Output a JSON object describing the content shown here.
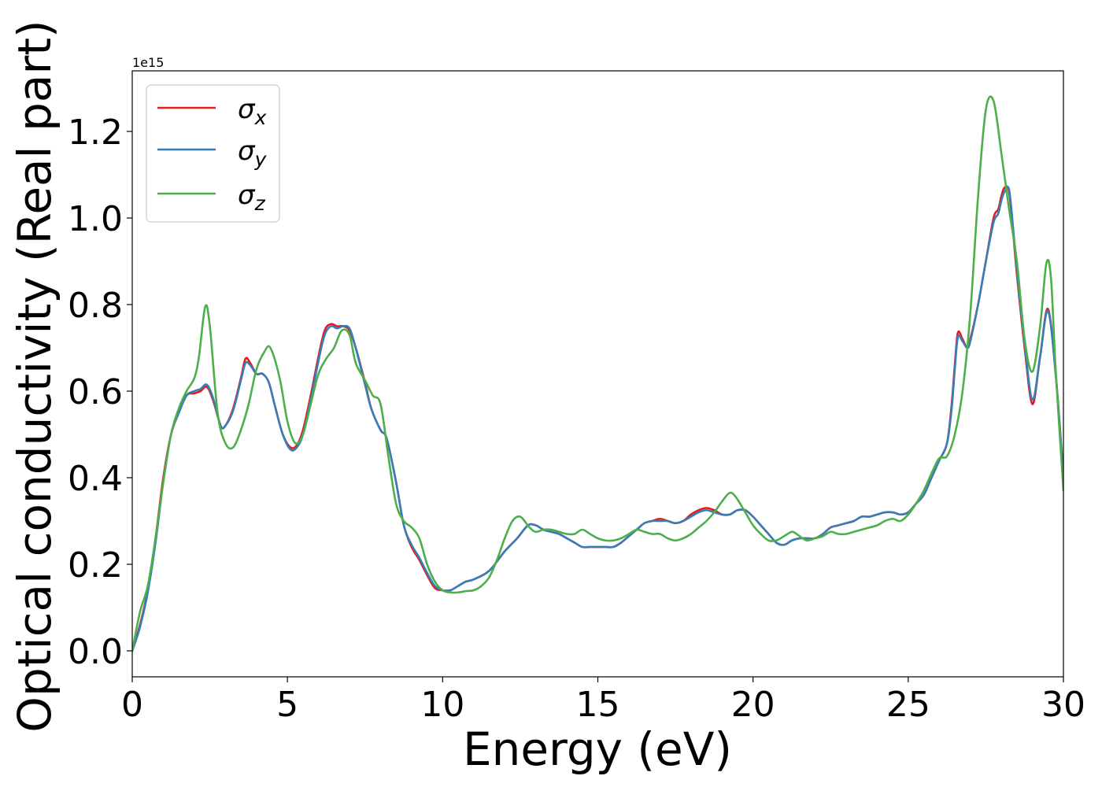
{
  "chart_data": {
    "type": "line",
    "xlabel": "Energy (eV)",
    "ylabel": "Optical conductivity (Real part)",
    "offset_text": "1e15",
    "xlim": [
      0,
      30
    ],
    "ylim": [
      -0.06,
      1.34
    ],
    "xticks": [
      0,
      5,
      10,
      15,
      20,
      25,
      30
    ],
    "xtick_labels": [
      "0",
      "5",
      "10",
      "15",
      "20",
      "25",
      "30"
    ],
    "yticks": [
      0.0,
      0.2,
      0.4,
      0.6,
      0.8,
      1.0,
      1.2
    ],
    "ytick_labels": [
      "0.0",
      "0.2",
      "0.4",
      "0.6",
      "0.8",
      "1.0",
      "1.2"
    ],
    "grid": false,
    "legend_position": "top-left",
    "series": [
      {
        "name": "σx",
        "legend_symbol": "σ",
        "legend_sub": "x",
        "color": "#e41a1c",
        "x": [
          0,
          0.25,
          0.5,
          0.75,
          1.0,
          1.25,
          1.5,
          1.75,
          2.0,
          2.2,
          2.4,
          2.6,
          2.85,
          3.0,
          3.25,
          3.5,
          3.65,
          3.8,
          4.0,
          4.2,
          4.4,
          4.6,
          4.85,
          5.1,
          5.3,
          5.5,
          5.75,
          6.0,
          6.2,
          6.4,
          6.6,
          6.8,
          7.0,
          7.2,
          7.5,
          7.7,
          8.0,
          8.2,
          8.5,
          8.75,
          9.0,
          9.25,
          9.5,
          9.75,
          10.0,
          10.25,
          10.5,
          10.75,
          11.0,
          11.5,
          12.0,
          12.4,
          12.75,
          13.0,
          13.25,
          13.5,
          13.75,
          14.0,
          14.25,
          14.5,
          14.75,
          15.0,
          15.25,
          15.5,
          15.75,
          16.0,
          16.25,
          16.5,
          16.75,
          17.0,
          17.25,
          17.5,
          17.75,
          18.0,
          18.25,
          18.5,
          18.75,
          19.0,
          19.25,
          19.5,
          19.75,
          20.0,
          20.25,
          20.5,
          20.75,
          21.0,
          21.25,
          21.5,
          21.75,
          22.0,
          22.25,
          22.5,
          22.75,
          23.0,
          23.25,
          23.5,
          23.75,
          24.0,
          24.25,
          24.5,
          24.75,
          25.0,
          25.25,
          25.5,
          25.75,
          26.0,
          26.25,
          26.4,
          26.5,
          26.6,
          26.75,
          26.9,
          27.0,
          27.25,
          27.5,
          27.75,
          27.9,
          28.0,
          28.1,
          28.25,
          28.4,
          28.5,
          28.75,
          29.0,
          29.25,
          29.5,
          29.75,
          30.0
        ],
        "y": [
          0.0,
          0.06,
          0.14,
          0.26,
          0.4,
          0.5,
          0.55,
          0.59,
          0.595,
          0.6,
          0.61,
          0.58,
          0.52,
          0.52,
          0.56,
          0.63,
          0.675,
          0.665,
          0.64,
          0.64,
          0.62,
          0.565,
          0.5,
          0.47,
          0.475,
          0.51,
          0.59,
          0.68,
          0.74,
          0.755,
          0.75,
          0.75,
          0.74,
          0.7,
          0.62,
          0.56,
          0.51,
          0.49,
          0.39,
          0.29,
          0.24,
          0.21,
          0.175,
          0.145,
          0.14,
          0.14,
          0.15,
          0.16,
          0.165,
          0.185,
          0.23,
          0.26,
          0.29,
          0.29,
          0.28,
          0.275,
          0.27,
          0.26,
          0.25,
          0.24,
          0.24,
          0.24,
          0.24,
          0.24,
          0.25,
          0.265,
          0.28,
          0.295,
          0.3,
          0.305,
          0.3,
          0.295,
          0.3,
          0.315,
          0.325,
          0.33,
          0.325,
          0.315,
          0.315,
          0.325,
          0.325,
          0.31,
          0.29,
          0.27,
          0.25,
          0.245,
          0.255,
          0.26,
          0.26,
          0.26,
          0.27,
          0.285,
          0.29,
          0.295,
          0.3,
          0.31,
          0.31,
          0.315,
          0.32,
          0.32,
          0.315,
          0.32,
          0.34,
          0.36,
          0.4,
          0.44,
          0.48,
          0.57,
          0.66,
          0.735,
          0.72,
          0.7,
          0.72,
          0.8,
          0.9,
          1.0,
          1.02,
          1.05,
          1.07,
          1.06,
          0.95,
          0.87,
          0.7,
          0.57,
          0.68,
          0.79,
          0.64,
          0.4
        ]
      },
      {
        "name": "σy",
        "legend_symbol": "σ",
        "legend_sub": "y",
        "color": "#377eb8",
        "x": [
          0,
          0.25,
          0.5,
          0.75,
          1.0,
          1.25,
          1.5,
          1.75,
          2.0,
          2.2,
          2.4,
          2.6,
          2.85,
          3.0,
          3.25,
          3.5,
          3.65,
          3.8,
          4.0,
          4.2,
          4.4,
          4.6,
          4.85,
          5.1,
          5.3,
          5.5,
          5.75,
          6.0,
          6.2,
          6.4,
          6.6,
          6.8,
          7.0,
          7.2,
          7.5,
          7.7,
          8.0,
          8.2,
          8.5,
          8.75,
          9.0,
          9.25,
          9.5,
          9.75,
          10.0,
          10.25,
          10.5,
          10.75,
          11.0,
          11.5,
          12.0,
          12.4,
          12.75,
          13.0,
          13.25,
          13.5,
          13.75,
          14.0,
          14.25,
          14.5,
          14.75,
          15.0,
          15.25,
          15.5,
          15.75,
          16.0,
          16.25,
          16.5,
          16.75,
          17.0,
          17.25,
          17.5,
          17.75,
          18.0,
          18.25,
          18.5,
          18.75,
          19.0,
          19.25,
          19.5,
          19.75,
          20.0,
          20.25,
          20.5,
          20.75,
          21.0,
          21.25,
          21.5,
          21.75,
          22.0,
          22.25,
          22.5,
          22.75,
          23.0,
          23.25,
          23.5,
          23.75,
          24.0,
          24.25,
          24.5,
          24.75,
          25.0,
          25.25,
          25.5,
          25.75,
          26.0,
          26.25,
          26.4,
          26.5,
          26.6,
          26.75,
          26.9,
          27.0,
          27.25,
          27.5,
          27.75,
          27.9,
          28.0,
          28.1,
          28.25,
          28.4,
          28.5,
          28.75,
          29.0,
          29.25,
          29.5,
          29.75,
          30.0
        ],
        "y": [
          0.0,
          0.055,
          0.135,
          0.25,
          0.39,
          0.5,
          0.55,
          0.59,
          0.6,
          0.605,
          0.615,
          0.585,
          0.52,
          0.52,
          0.555,
          0.625,
          0.665,
          0.66,
          0.64,
          0.64,
          0.62,
          0.565,
          0.5,
          0.465,
          0.47,
          0.5,
          0.58,
          0.67,
          0.73,
          0.75,
          0.745,
          0.75,
          0.745,
          0.7,
          0.615,
          0.56,
          0.51,
          0.49,
          0.39,
          0.29,
          0.245,
          0.215,
          0.18,
          0.15,
          0.14,
          0.14,
          0.15,
          0.16,
          0.165,
          0.185,
          0.23,
          0.26,
          0.29,
          0.29,
          0.28,
          0.275,
          0.27,
          0.26,
          0.25,
          0.24,
          0.24,
          0.24,
          0.24,
          0.24,
          0.25,
          0.265,
          0.28,
          0.295,
          0.3,
          0.3,
          0.3,
          0.295,
          0.3,
          0.31,
          0.32,
          0.325,
          0.32,
          0.315,
          0.315,
          0.325,
          0.325,
          0.31,
          0.29,
          0.27,
          0.25,
          0.245,
          0.255,
          0.26,
          0.26,
          0.26,
          0.27,
          0.285,
          0.29,
          0.295,
          0.3,
          0.31,
          0.31,
          0.315,
          0.32,
          0.32,
          0.315,
          0.32,
          0.34,
          0.36,
          0.4,
          0.44,
          0.48,
          0.56,
          0.65,
          0.725,
          0.715,
          0.7,
          0.715,
          0.8,
          0.9,
          0.99,
          1.01,
          1.04,
          1.06,
          1.065,
          0.96,
          0.88,
          0.71,
          0.58,
          0.68,
          0.785,
          0.64,
          0.4
        ]
      },
      {
        "name": "σz",
        "legend_symbol": "σ",
        "legend_sub": "z",
        "color": "#4daf4a",
        "x": [
          0,
          0.25,
          0.5,
          0.75,
          1.0,
          1.25,
          1.5,
          1.75,
          2.0,
          2.15,
          2.35,
          2.5,
          2.75,
          3.0,
          3.25,
          3.5,
          3.75,
          4.0,
          4.25,
          4.45,
          4.75,
          5.0,
          5.25,
          5.5,
          5.75,
          6.0,
          6.25,
          6.5,
          6.75,
          7.0,
          7.2,
          7.5,
          7.75,
          8.0,
          8.25,
          8.5,
          8.75,
          9.0,
          9.25,
          9.5,
          9.75,
          10.0,
          10.25,
          10.5,
          10.75,
          11.0,
          11.25,
          11.5,
          11.75,
          12.0,
          12.25,
          12.5,
          12.8,
          13.0,
          13.25,
          13.5,
          13.75,
          14.0,
          14.25,
          14.5,
          14.75,
          15.0,
          15.25,
          15.5,
          15.75,
          16.0,
          16.25,
          16.5,
          16.75,
          17.0,
          17.25,
          17.5,
          17.75,
          18.0,
          18.25,
          18.5,
          18.75,
          19.0,
          19.25,
          19.45,
          19.75,
          20.0,
          20.25,
          20.5,
          20.75,
          21.0,
          21.25,
          21.4,
          21.6,
          21.75,
          22.0,
          22.25,
          22.5,
          22.75,
          23.0,
          23.25,
          23.5,
          23.75,
          24.0,
          24.25,
          24.5,
          24.75,
          25.0,
          25.25,
          25.5,
          25.75,
          26.0,
          26.25,
          26.5,
          26.75,
          27.0,
          27.25,
          27.5,
          27.75,
          28.0,
          28.25,
          28.5,
          28.75,
          29.0,
          29.25,
          29.45,
          29.6,
          29.75,
          30.0
        ],
        "y": [
          0.0,
          0.09,
          0.15,
          0.26,
          0.39,
          0.5,
          0.56,
          0.6,
          0.63,
          0.68,
          0.795,
          0.75,
          0.55,
          0.48,
          0.47,
          0.51,
          0.57,
          0.65,
          0.69,
          0.7,
          0.63,
          0.53,
          0.48,
          0.5,
          0.57,
          0.64,
          0.675,
          0.7,
          0.74,
          0.73,
          0.665,
          0.625,
          0.59,
          0.57,
          0.45,
          0.34,
          0.3,
          0.285,
          0.26,
          0.2,
          0.16,
          0.14,
          0.135,
          0.135,
          0.138,
          0.14,
          0.15,
          0.17,
          0.21,
          0.26,
          0.3,
          0.31,
          0.285,
          0.275,
          0.28,
          0.28,
          0.275,
          0.27,
          0.27,
          0.28,
          0.27,
          0.26,
          0.255,
          0.255,
          0.26,
          0.27,
          0.28,
          0.275,
          0.27,
          0.27,
          0.26,
          0.255,
          0.26,
          0.27,
          0.285,
          0.3,
          0.32,
          0.345,
          0.365,
          0.355,
          0.32,
          0.29,
          0.27,
          0.255,
          0.255,
          0.265,
          0.275,
          0.27,
          0.26,
          0.255,
          0.26,
          0.265,
          0.275,
          0.27,
          0.27,
          0.275,
          0.28,
          0.285,
          0.29,
          0.3,
          0.305,
          0.3,
          0.315,
          0.34,
          0.37,
          0.41,
          0.445,
          0.45,
          0.5,
          0.6,
          0.78,
          1.05,
          1.25,
          1.27,
          1.15,
          1.02,
          0.9,
          0.72,
          0.645,
          0.75,
          0.895,
          0.86,
          0.65,
          0.37
        ]
      }
    ]
  }
}
